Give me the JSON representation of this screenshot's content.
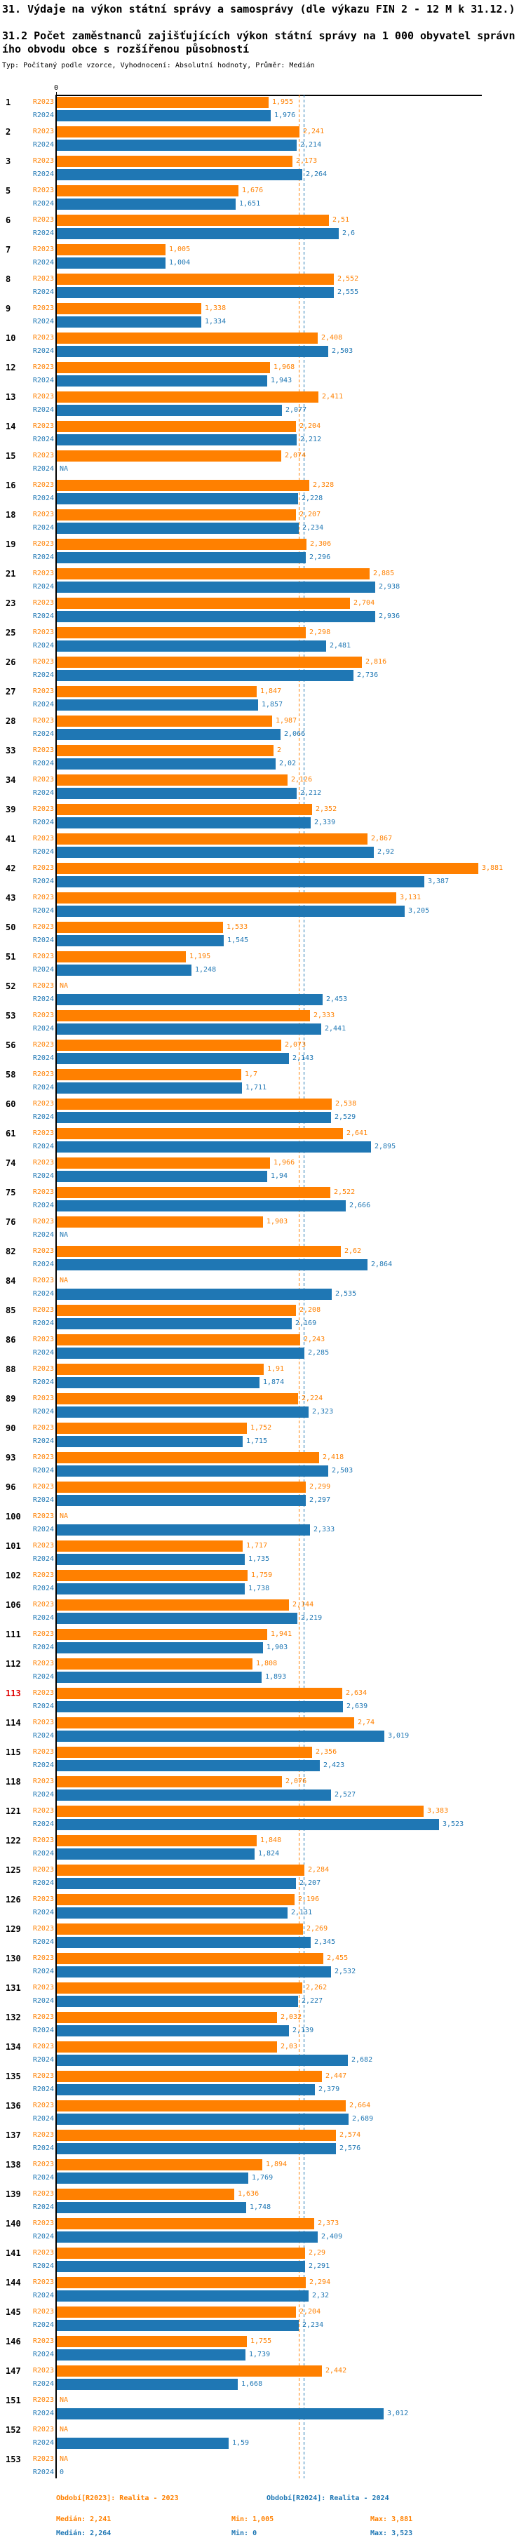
{
  "header": {
    "title": "31. Výdaje na výkon státní správy a samosprávy (dle výkazu FIN 2 - 12 M k 31.12.)",
    "subtitle": "31.2 Počet zaměstnanců zajišťujících výkon státní správy na 1 000 obyvatel správního obvodu obce s rozšířenou působností",
    "meta": "Typ: Počítaný podle vzorce, Vyhodnocení: Absolutní hodnoty, Průměr: Medián"
  },
  "axis": {
    "zero_label": "0"
  },
  "colors": {
    "r2023": "#ff8000",
    "r2024": "#1f77b4",
    "highlight": "#e00000",
    "axis": "#000000"
  },
  "legend": {
    "r2023": "Období[R2023]: Realita - 2023",
    "r2024": "Období[R2024]: Realita - 2024"
  },
  "stats": {
    "r2023": {
      "median": "Medián: 2,241",
      "min": "Min: 1,005",
      "max": "Max: 3,881"
    },
    "r2024": {
      "median": "Medián: 2,264",
      "min": "Min: 0",
      "max": "Max: 3,523"
    }
  },
  "chart_data": {
    "type": "bar",
    "orientation": "horizontal",
    "value_format": "czech decimal comma",
    "missing_value_label": "NA",
    "highlighted_category": "113",
    "xlim": [
      0,
      3.881
    ],
    "median": {
      "R2023": "2,241",
      "R2024": "2,264"
    },
    "min": {
      "R2023": "1,005",
      "R2024": "0"
    },
    "max": {
      "R2023": "3,881",
      "R2024": "3,523"
    },
    "categories": [
      "1",
      "2",
      "3",
      "5",
      "6",
      "7",
      "8",
      "9",
      "10",
      "12",
      "13",
      "14",
      "15",
      "16",
      "18",
      "19",
      "21",
      "23",
      "25",
      "26",
      "27",
      "28",
      "33",
      "34",
      "39",
      "41",
      "42",
      "43",
      "50",
      "51",
      "52",
      "53",
      "56",
      "58",
      "60",
      "61",
      "74",
      "75",
      "76",
      "82",
      "84",
      "85",
      "86",
      "88",
      "89",
      "90",
      "93",
      "96",
      "100",
      "101",
      "102",
      "106",
      "111",
      "112",
      "113",
      "114",
      "115",
      "118",
      "121",
      "122",
      "125",
      "126",
      "129",
      "130",
      "131",
      "132",
      "134",
      "135",
      "136",
      "137",
      "138",
      "139",
      "140",
      "141",
      "144",
      "145",
      "146",
      "147",
      "151",
      "152",
      "153"
    ],
    "series": [
      {
        "name": "R2023",
        "color": "#ff8000",
        "values": [
          "1,955",
          "2,241",
          "2,173",
          "1,676",
          "2,51",
          "1,005",
          "2,552",
          "1,338",
          "2,408",
          "1,968",
          "2,411",
          "2,204",
          "2,074",
          "2,328",
          "2,207",
          "2,306",
          "2,885",
          "2,704",
          "2,298",
          "2,816",
          "1,847",
          "1,987",
          "2",
          "2,126",
          "2,352",
          "2,867",
          "3,881",
          "3,131",
          "1,533",
          "1,195",
          "NA",
          "2,333",
          "2,073",
          "1,7",
          "2,538",
          "2,641",
          "1,966",
          "2,522",
          "1,903",
          "2,62",
          "NA",
          "2,208",
          "2,243",
          "1,91",
          "2,224",
          "1,752",
          "2,418",
          "2,299",
          "NA",
          "1,717",
          "1,759",
          "2,144",
          "1,941",
          "1,808",
          "2,634",
          "2,74",
          "2,356",
          "2,076",
          "3,383",
          "1,848",
          "2,284",
          "2,196",
          "2,269",
          "2,455",
          "2,262",
          "2,032",
          "2,03",
          "2,447",
          "2,664",
          "2,574",
          "1,894",
          "1,636",
          "2,373",
          "2,29",
          "2,294",
          "2,204",
          "1,755",
          "2,442",
          "NA",
          "NA",
          "NA"
        ]
      },
      {
        "name": "R2024",
        "color": "#1f77b4",
        "values": [
          "1,976",
          "2,214",
          "2,264",
          "1,651",
          "2,6",
          "1,004",
          "2,555",
          "1,334",
          "2,503",
          "1,943",
          "2,077",
          "2,212",
          "NA",
          "2,228",
          "2,234",
          "2,296",
          "2,938",
          "2,936",
          "2,481",
          "2,736",
          "1,857",
          "2,066",
          "2,02",
          "2,212",
          "2,339",
          "2,92",
          "3,387",
          "3,205",
          "1,545",
          "1,248",
          "2,453",
          "2,441",
          "2,143",
          "1,711",
          "2,529",
          "2,895",
          "1,94",
          "2,666",
          "NA",
          "2,864",
          "2,535",
          "2,169",
          "2,285",
          "1,874",
          "2,323",
          "1,715",
          "2,503",
          "2,297",
          "2,333",
          "1,735",
          "1,738",
          "2,219",
          "1,903",
          "1,893",
          "2,639",
          "3,019",
          "2,423",
          "2,527",
          "3,523",
          "1,824",
          "2,207",
          "2,131",
          "2,345",
          "2,532",
          "2,227",
          "2,139",
          "2,682",
          "2,379",
          "2,689",
          "2,576",
          "1,769",
          "1,748",
          "2,409",
          "2,291",
          "2,32",
          "2,234",
          "1,739",
          "1,668",
          "3,012",
          "1,59",
          "0"
        ]
      }
    ]
  }
}
